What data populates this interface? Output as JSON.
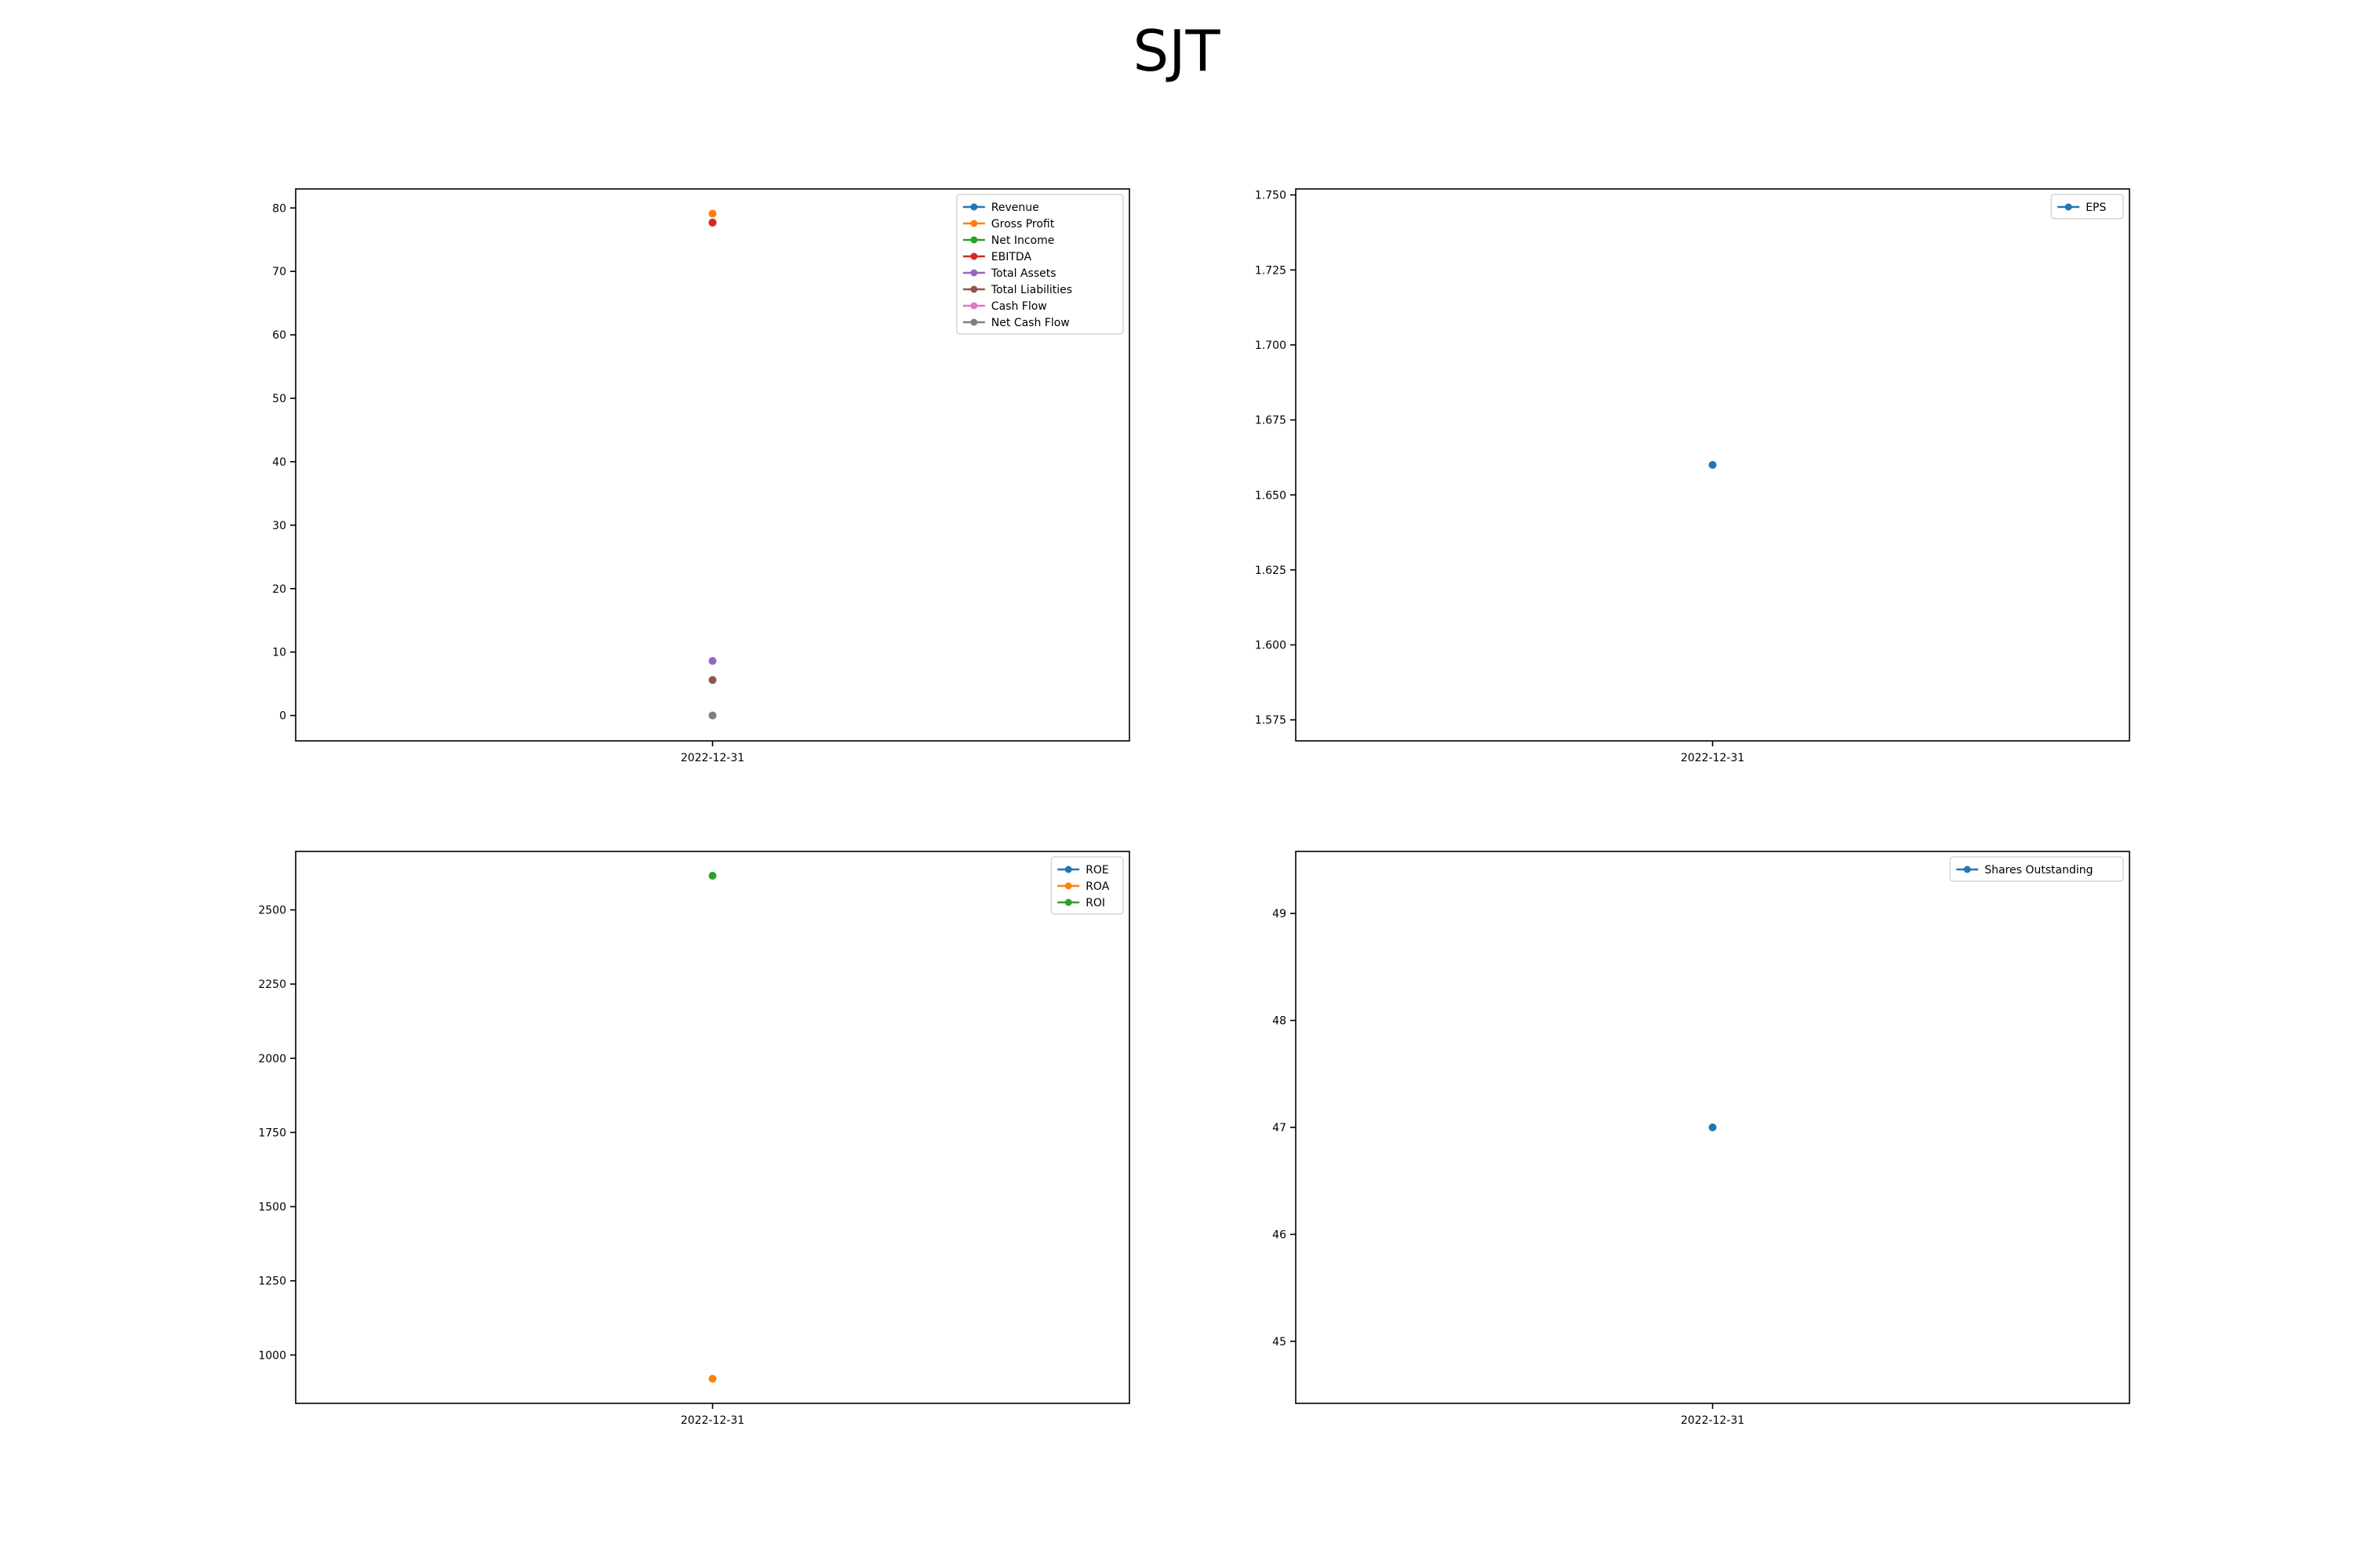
{
  "page": {
    "title": "SJT"
  },
  "chart_data": [
    {
      "type": "scatter",
      "title": "",
      "xlabel": "",
      "ylabel": "",
      "categories": [
        "2022-12-31"
      ],
      "ylim": [
        -4,
        83
      ],
      "yticks": [
        0,
        10,
        20,
        30,
        40,
        50,
        60,
        70,
        80
      ],
      "grid": false,
      "legend_position": "top-right",
      "series": [
        {
          "name": "Revenue",
          "color": "#1f77b4",
          "values": [
            77.7
          ]
        },
        {
          "name": "Gross Profit",
          "color": "#ff7f0e",
          "values": [
            79.1
          ]
        },
        {
          "name": "Net Income",
          "color": "#2ca02c",
          "values": [
            77.7
          ]
        },
        {
          "name": "EBITDA",
          "color": "#d62728",
          "values": [
            77.7
          ]
        },
        {
          "name": "Total Assets",
          "color": "#9467bd",
          "values": [
            8.6
          ]
        },
        {
          "name": "Total Liabilities",
          "color": "#8c564b",
          "values": [
            5.6
          ]
        },
        {
          "name": "Cash Flow",
          "color": "#e377c2",
          "values": [
            0.0
          ]
        },
        {
          "name": "Net Cash Flow",
          "color": "#7f7f7f",
          "values": [
            0.0
          ]
        }
      ]
    },
    {
      "type": "scatter",
      "title": "",
      "xlabel": "",
      "ylabel": "",
      "categories": [
        "2022-12-31"
      ],
      "ylim": [
        1.568,
        1.752
      ],
      "yticks": [
        1.575,
        1.6,
        1.625,
        1.65,
        1.675,
        1.7,
        1.725,
        1.75
      ],
      "ytick_labels": [
        "1.575",
        "1.600",
        "1.625",
        "1.650",
        "1.675",
        "1.700",
        "1.725",
        "1.750"
      ],
      "grid": false,
      "legend_position": "top-right",
      "series": [
        {
          "name": "EPS",
          "color": "#1f77b4",
          "values": [
            1.66
          ]
        }
      ]
    },
    {
      "type": "scatter",
      "title": "",
      "xlabel": "",
      "ylabel": "",
      "categories": [
        "2022-12-31"
      ],
      "ylim": [
        837,
        2697
      ],
      "yticks": [
        1000,
        1250,
        1500,
        1750,
        2000,
        2250,
        2500
      ],
      "grid": false,
      "legend_position": "top-right",
      "series": [
        {
          "name": "ROE",
          "color": "#1f77b4",
          "values": [
            null
          ]
        },
        {
          "name": "ROA",
          "color": "#ff7f0e",
          "values": [
            920
          ]
        },
        {
          "name": "ROI",
          "color": "#2ca02c",
          "values": [
            2615
          ]
        }
      ]
    },
    {
      "type": "scatter",
      "title": "",
      "xlabel": "",
      "ylabel": "",
      "categories": [
        "2022-12-31"
      ],
      "ylim": [
        44.42,
        49.58
      ],
      "yticks": [
        45,
        46,
        47,
        48,
        49
      ],
      "grid": false,
      "legend_position": "top-right",
      "series": [
        {
          "name": "Shares Outstanding",
          "color": "#1f77b4",
          "values": [
            47
          ]
        }
      ]
    }
  ]
}
